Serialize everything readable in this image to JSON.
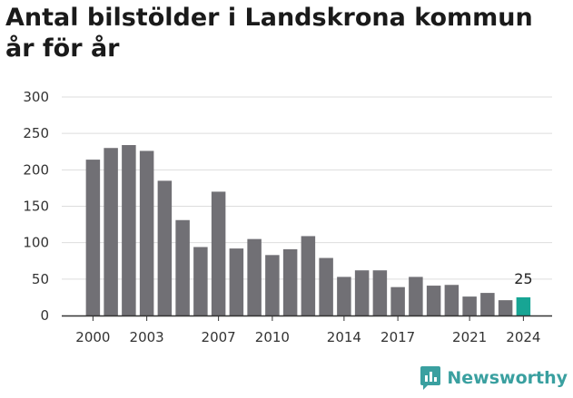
{
  "title": "Antal bilstölder i Landskrona kommun år för år",
  "brand": {
    "name": "Newsworthy",
    "color": "#3aa0a0",
    "icon": "newsworthy-logo-icon"
  },
  "colors": {
    "bar": "#717075",
    "highlight": "#17a594",
    "grid": "#dddddd",
    "axis": "#333333"
  },
  "chart_data": {
    "type": "bar",
    "title": "Antal bilstölder i Landskrona kommun år för år",
    "xlabel": "",
    "ylabel": "",
    "categories": [
      "2000",
      "2001",
      "2002",
      "2003",
      "2004",
      "2005",
      "2006",
      "2007",
      "2008",
      "2009",
      "2010",
      "2011",
      "2012",
      "2013",
      "2014",
      "2015",
      "2016",
      "2017",
      "2018",
      "2019",
      "2020",
      "2021",
      "2022",
      "2023",
      "2024"
    ],
    "values": [
      214,
      230,
      234,
      226,
      185,
      131,
      94,
      170,
      92,
      105,
      83,
      91,
      109,
      79,
      53,
      62,
      62,
      39,
      53,
      41,
      42,
      26,
      31,
      21,
      25
    ],
    "ylim": [
      0,
      300
    ],
    "yticks": [
      0,
      50,
      100,
      150,
      200,
      250,
      300
    ],
    "xtick_labels": [
      "2000",
      "2003",
      "2007",
      "2010",
      "2014",
      "2017",
      "2021",
      "2024"
    ],
    "highlight": {
      "category": "2024",
      "label": "25"
    },
    "grid": true,
    "legend": "none"
  }
}
